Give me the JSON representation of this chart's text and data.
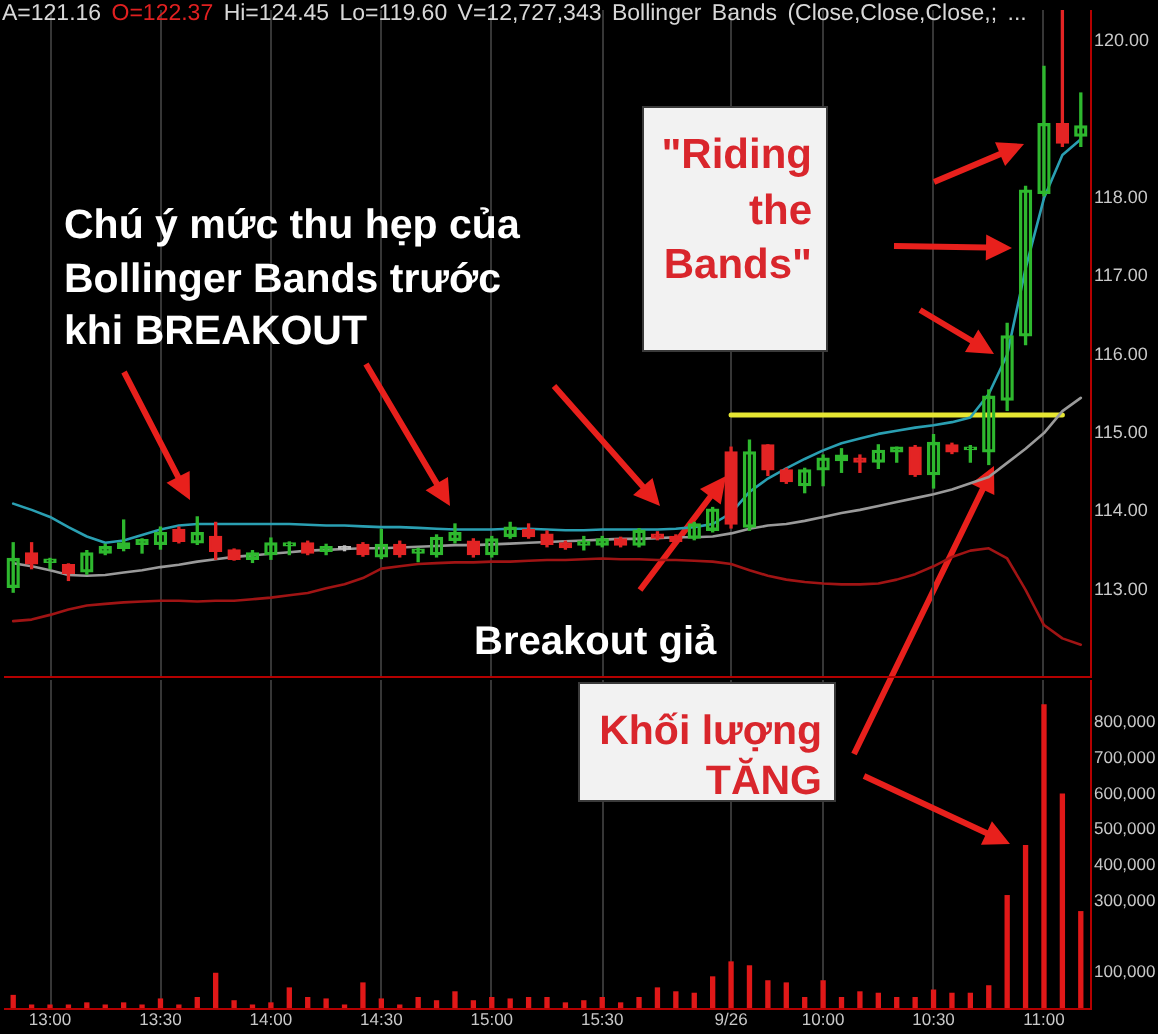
{
  "chart_data": [
    {
      "type": "candlestick",
      "title": "A=121.16 O=122.37 Hi=124.45 Lo=119.60 V=12,727,343 Bollinger Bands (Close,Close,Close,; ...",
      "categories": [
        null,
        null,
        null,
        null,
        null,
        null,
        null,
        null,
        null,
        null,
        null,
        null,
        null,
        null,
        null,
        null,
        null,
        null,
        null,
        null,
        null,
        null,
        null,
        null,
        null,
        null,
        null,
        null,
        null,
        null,
        null,
        null,
        null,
        null,
        null,
        null,
        null,
        null,
        null,
        null,
        null,
        null,
        null,
        null,
        null,
        null,
        null,
        null,
        null,
        null,
        null,
        null,
        null,
        null,
        null,
        null,
        null,
        null,
        null
      ],
      "ohlc": [
        [
          113.03,
          113.6,
          112.97,
          113.4
        ],
        [
          113.47,
          113.6,
          113.27,
          113.33
        ],
        [
          113.35,
          113.4,
          113.27,
          113.39
        ],
        [
          113.32,
          113.33,
          113.12,
          113.21
        ],
        [
          113.23,
          113.5,
          113.2,
          113.47
        ],
        [
          113.47,
          113.58,
          113.45,
          113.55
        ],
        [
          113.53,
          113.89,
          113.5,
          113.6
        ],
        [
          113.58,
          113.65,
          113.47,
          113.64
        ],
        [
          113.58,
          113.8,
          113.52,
          113.73
        ],
        [
          113.77,
          113.8,
          113.6,
          113.62
        ],
        [
          113.6,
          113.93,
          113.58,
          113.73
        ],
        [
          113.68,
          113.86,
          113.39,
          113.49
        ],
        [
          113.51,
          113.52,
          113.38,
          113.39
        ],
        [
          113.39,
          113.5,
          113.35,
          113.47
        ],
        [
          113.45,
          113.66,
          113.39,
          113.6
        ],
        [
          113.56,
          113.61,
          113.45,
          113.6
        ],
        [
          113.6,
          113.62,
          113.45,
          113.47
        ],
        [
          113.49,
          113.58,
          113.45,
          113.55
        ],
        [
          113.55,
          113.56,
          113.5,
          113.52
        ],
        [
          113.58,
          113.6,
          113.43,
          113.45
        ],
        [
          113.42,
          113.77,
          113.4,
          113.58
        ],
        [
          113.58,
          113.62,
          113.42,
          113.45
        ],
        [
          113.47,
          113.53,
          113.36,
          113.52
        ],
        [
          113.45,
          113.7,
          113.42,
          113.67
        ],
        [
          113.63,
          113.84,
          113.6,
          113.73
        ],
        [
          113.62,
          113.65,
          113.42,
          113.45
        ],
        [
          113.45,
          113.68,
          113.42,
          113.65
        ],
        [
          113.68,
          113.86,
          113.66,
          113.8
        ],
        [
          113.77,
          113.84,
          113.66,
          113.68
        ],
        [
          113.71,
          113.75,
          113.55,
          113.58
        ],
        [
          113.6,
          113.62,
          113.52,
          113.54
        ],
        [
          113.57,
          113.68,
          113.51,
          113.62
        ],
        [
          113.57,
          113.68,
          113.55,
          113.65
        ],
        [
          113.65,
          113.67,
          113.55,
          113.57
        ],
        [
          113.57,
          113.78,
          113.55,
          113.76
        ],
        [
          113.71,
          113.74,
          113.64,
          113.66
        ],
        [
          113.68,
          113.7,
          113.6,
          113.62
        ],
        [
          113.66,
          113.86,
          113.64,
          113.84
        ],
        [
          113.76,
          114.05,
          113.74,
          114.03
        ],
        [
          114.76,
          114.82,
          113.79,
          113.84
        ],
        [
          113.8,
          114.91,
          113.76,
          114.76
        ],
        [
          114.85,
          114.85,
          114.46,
          114.53
        ],
        [
          114.53,
          114.55,
          114.36,
          114.38
        ],
        [
          114.33,
          114.55,
          114.24,
          114.53
        ],
        [
          114.53,
          114.72,
          114.33,
          114.68
        ],
        [
          114.65,
          114.8,
          114.5,
          114.72
        ],
        [
          114.68,
          114.72,
          114.5,
          114.63
        ],
        [
          114.63,
          114.85,
          114.55,
          114.78
        ],
        [
          114.76,
          114.82,
          114.63,
          114.82
        ],
        [
          114.82,
          114.84,
          114.45,
          114.47
        ],
        [
          114.47,
          114.98,
          114.3,
          114.88
        ],
        [
          114.85,
          114.87,
          114.74,
          114.76
        ],
        [
          114.79,
          114.84,
          114.63,
          114.82
        ],
        [
          114.76,
          115.55,
          114.6,
          115.47
        ],
        [
          115.42,
          116.4,
          115.29,
          116.24
        ],
        [
          116.24,
          118.15,
          116.13,
          118.1
        ],
        [
          118.06,
          119.68,
          118.03,
          118.95
        ],
        [
          118.95,
          120.4,
          118.66,
          118.7
        ],
        [
          118.79,
          119.34,
          118.66,
          118.92
        ]
      ],
      "colors": [
        "#2eb82e",
        "#e32424",
        "#2eb82e",
        "#e32424",
        "#2eb82e",
        "#2eb82e",
        "#2eb82e",
        "#2eb82e",
        "#2eb82e",
        "#e32424",
        "#2eb82e",
        "#e32424",
        "#e32424",
        "#2eb82e",
        "#2eb82e",
        "#2eb82e",
        "#e32424",
        "#2eb82e",
        "#bdbdbd",
        "#e32424",
        "#2eb82e",
        "#e32424",
        "#2eb82e",
        "#2eb82e",
        "#2eb82e",
        "#e32424",
        "#2eb82e",
        "#2eb82e",
        "#e32424",
        "#e32424",
        "#e32424",
        "#2eb82e",
        "#2eb82e",
        "#e32424",
        "#2eb82e",
        "#e32424",
        "#e32424",
        "#2eb82e",
        "#2eb82e",
        "#e32424",
        "#2eb82e",
        "#e32424",
        "#e32424",
        "#2eb82e",
        "#2eb82e",
        "#2eb82e",
        "#e32424",
        "#2eb82e",
        "#2eb82e",
        "#e32424",
        "#2eb82e",
        "#e32424",
        "#2eb82e",
        "#2eb82e",
        "#2eb82e",
        "#2eb82e",
        "#2eb82e",
        "#e32424",
        "#2eb82e"
      ],
      "series": [
        {
          "type": "line",
          "color": "#2a9fb2",
          "values": [
            114.1,
            114.02,
            113.93,
            113.8,
            113.68,
            113.6,
            113.63,
            113.7,
            113.77,
            113.82,
            113.84,
            113.84,
            113.84,
            113.84,
            113.84,
            113.84,
            113.83,
            113.82,
            113.82,
            113.81,
            113.8,
            113.8,
            113.79,
            113.78,
            113.77,
            113.77,
            113.77,
            113.78,
            113.78,
            113.77,
            113.76,
            113.76,
            113.77,
            113.77,
            113.77,
            113.77,
            113.78,
            113.8,
            113.84,
            113.98,
            114.25,
            114.42,
            114.55,
            114.67,
            114.78,
            114.87,
            114.93,
            114.99,
            115.03,
            115.07,
            115.1,
            115.14,
            115.2,
            115.5,
            116.0,
            117.1,
            118.0,
            118.55,
            118.75
          ]
        },
        {
          "type": "line",
          "color": "#9a9a9a",
          "values": [
            113.34,
            113.3,
            113.25,
            113.19,
            113.18,
            113.19,
            113.22,
            113.25,
            113.29,
            113.32,
            113.36,
            113.39,
            113.42,
            113.44,
            113.46,
            113.48,
            113.5,
            113.51,
            113.52,
            113.53,
            113.53,
            113.54,
            113.55,
            113.56,
            113.57,
            113.57,
            113.58,
            113.59,
            113.6,
            113.61,
            113.62,
            113.63,
            113.64,
            113.65,
            113.65,
            113.66,
            113.67,
            113.67,
            113.68,
            113.72,
            113.78,
            113.82,
            113.84,
            113.88,
            113.93,
            113.98,
            114.02,
            114.07,
            114.12,
            114.17,
            114.22,
            114.28,
            114.36,
            114.44,
            114.62,
            114.8,
            115.0,
            115.28,
            115.45
          ]
        },
        {
          "type": "line",
          "color": "#a01414",
          "values": [
            112.6,
            112.62,
            112.68,
            112.75,
            112.8,
            112.82,
            112.84,
            112.85,
            112.86,
            112.86,
            112.85,
            112.86,
            112.86,
            112.88,
            112.9,
            112.93,
            112.96,
            113.02,
            113.07,
            113.15,
            113.27,
            113.3,
            113.33,
            113.34,
            113.35,
            113.35,
            113.36,
            113.36,
            113.37,
            113.38,
            113.38,
            113.39,
            113.4,
            113.39,
            113.39,
            113.38,
            113.38,
            113.37,
            113.36,
            113.33,
            113.25,
            113.18,
            113.13,
            113.1,
            113.08,
            113.07,
            113.07,
            113.08,
            113.13,
            113.2,
            113.3,
            113.42,
            113.5,
            113.53,
            113.4,
            113.0,
            112.55,
            112.38,
            112.3
          ]
        },
        {
          "type": "line",
          "color": "#e6e632",
          "values": [
            null,
            null,
            null,
            null,
            null,
            null,
            null,
            null,
            null,
            null,
            null,
            null,
            null,
            null,
            null,
            null,
            null,
            null,
            null,
            null,
            null,
            null,
            null,
            null,
            null,
            null,
            null,
            null,
            null,
            null,
            null,
            null,
            null,
            null,
            null,
            null,
            null,
            null,
            null,
            115.23,
            115.23,
            115.23,
            115.23,
            115.23,
            115.23,
            115.23,
            115.23,
            115.23,
            115.23,
            115.23,
            115.23,
            115.23,
            115.23,
            115.23,
            115.23,
            115.23,
            115.23,
            115.23,
            null
          ]
        }
      ],
      "ylim": [
        111.9,
        120.4
      ],
      "yticks": [
        {
          "value": 113,
          "label": "113.00"
        },
        {
          "value": 114,
          "label": "114.00"
        },
        {
          "value": 115,
          "label": "115.00"
        },
        {
          "value": 116,
          "label": "116.00"
        },
        {
          "value": 117,
          "label": "117.00"
        },
        {
          "value": 118,
          "label": "118.00"
        },
        {
          "value": 120,
          "label": "120.00"
        }
      ],
      "grid": "x",
      "tick_labels": "y",
      "annotations": [
        "Chú ý mức thu hẹp của Bollinger Bands trước khi BREAKOUT",
        "\"Riding the Bands\"",
        "Breakout giả"
      ]
    },
    {
      "type": "bar",
      "categories": [
        null,
        null,
        "13:00",
        null,
        null,
        null,
        null,
        null,
        "13:30",
        null,
        null,
        null,
        null,
        null,
        "14:00",
        null,
        null,
        null,
        null,
        null,
        "14:30",
        null,
        null,
        null,
        null,
        null,
        "15:00",
        null,
        null,
        null,
        null,
        null,
        "15:30",
        null,
        null,
        null,
        null,
        null,
        null,
        "9/26",
        null,
        null,
        null,
        null,
        "10:00",
        null,
        null,
        null,
        null,
        null,
        "10:30",
        null,
        null,
        null,
        null,
        null,
        "11:00",
        null,
        null
      ],
      "values": [
        35000,
        8000,
        8000,
        8000,
        14000,
        8000,
        14000,
        8000,
        25000,
        8000,
        29000,
        97000,
        20000,
        8000,
        14000,
        56000,
        29000,
        25000,
        8000,
        70000,
        25000,
        8000,
        29000,
        20000,
        45000,
        20000,
        29000,
        25000,
        29000,
        29000,
        14000,
        20000,
        29000,
        14000,
        29000,
        56000,
        45000,
        41000,
        87000,
        129000,
        118000,
        76000,
        70000,
        29000,
        76000,
        29000,
        45000,
        41000,
        29000,
        29000,
        50000,
        41000,
        41000,
        62000,
        315000,
        455000,
        850000,
        600000,
        270000
      ],
      "color": "#e01818",
      "ylim": [
        0,
        920000
      ],
      "yticks": [
        {
          "value": 100000,
          "label": "100,000"
        },
        {
          "value": 300000,
          "label": "300,000"
        },
        {
          "value": 400000,
          "label": "400,000"
        },
        {
          "value": 500000,
          "label": "500,000"
        },
        {
          "value": 600000,
          "label": "600,000"
        },
        {
          "value": 700000,
          "label": "700,000"
        },
        {
          "value": 800000,
          "label": "800,000"
        }
      ],
      "grid": "x",
      "annotations": [
        "Khối lượng TĂNG"
      ]
    }
  ]
}
